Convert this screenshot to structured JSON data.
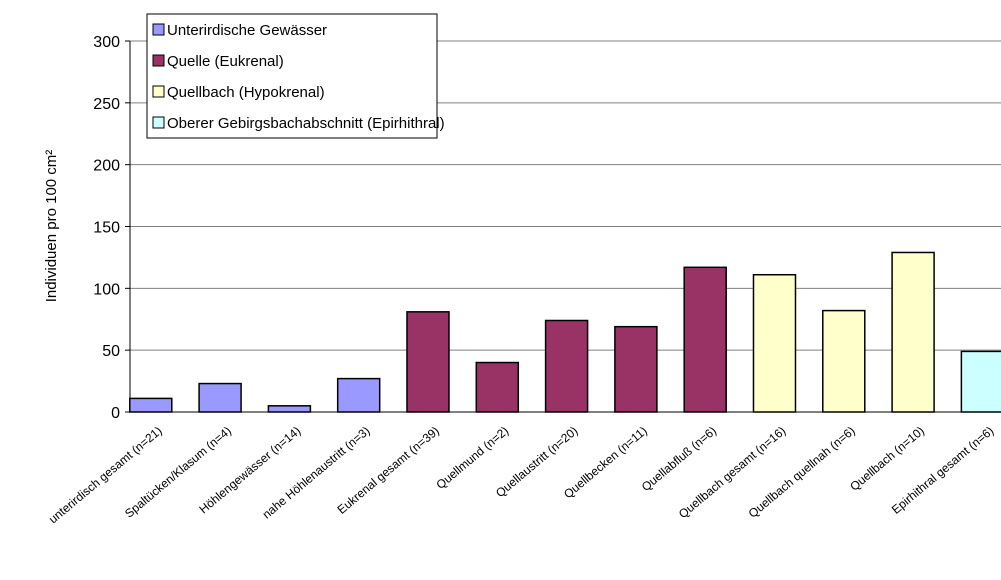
{
  "chart_data": {
    "type": "bar",
    "y_label": "Individuen pro 100 cm²",
    "categories": [
      "unterirdisch gesamt (n=21)",
      "Spaltücken/Klasum (n=4)",
      "Höhlengewässer (n=14)",
      "nahe Höhlenaustritt (n=3)",
      "Eukrenal gesamt (n=39)",
      "Quellmund (n=2)",
      "Quellaustritt (n=20)",
      "Quellbecken (n=11)",
      "Quellabfluß (n=6)",
      "Quellbach gesamt (n=16)",
      "Quellbach quellnah (n=6)",
      "Quellbach (n=10)",
      "Epirhithral gesamt (n=6)"
    ],
    "series": [
      {
        "name": "Unterirdische Gewässer",
        "color": "#9999ff",
        "values": [
          11,
          23,
          5,
          27,
          null,
          null,
          null,
          null,
          null,
          null,
          null,
          null,
          null
        ]
      },
      {
        "name": "Quelle (Eukrenal)",
        "color": "#993366",
        "values": [
          null,
          null,
          null,
          null,
          81,
          40,
          74,
          69,
          117,
          null,
          null,
          null,
          null
        ]
      },
      {
        "name": "Quellbach (Hypokrenal)",
        "color": "#ffffcc",
        "values": [
          null,
          null,
          null,
          null,
          null,
          null,
          null,
          null,
          null,
          111,
          82,
          129,
          null
        ]
      },
      {
        "name": "Oberer Gebirgsbachabschnitt (Epirhithral)",
        "color": "#ccffff",
        "values": [
          null,
          null,
          null,
          null,
          null,
          null,
          null,
          null,
          null,
          null,
          null,
          null,
          49
        ]
      }
    ],
    "ylim": [
      0,
      300
    ],
    "yticks": [
      0,
      50,
      100,
      150,
      200,
      250,
      300
    ],
    "grid": true,
    "legend": "top-left"
  }
}
